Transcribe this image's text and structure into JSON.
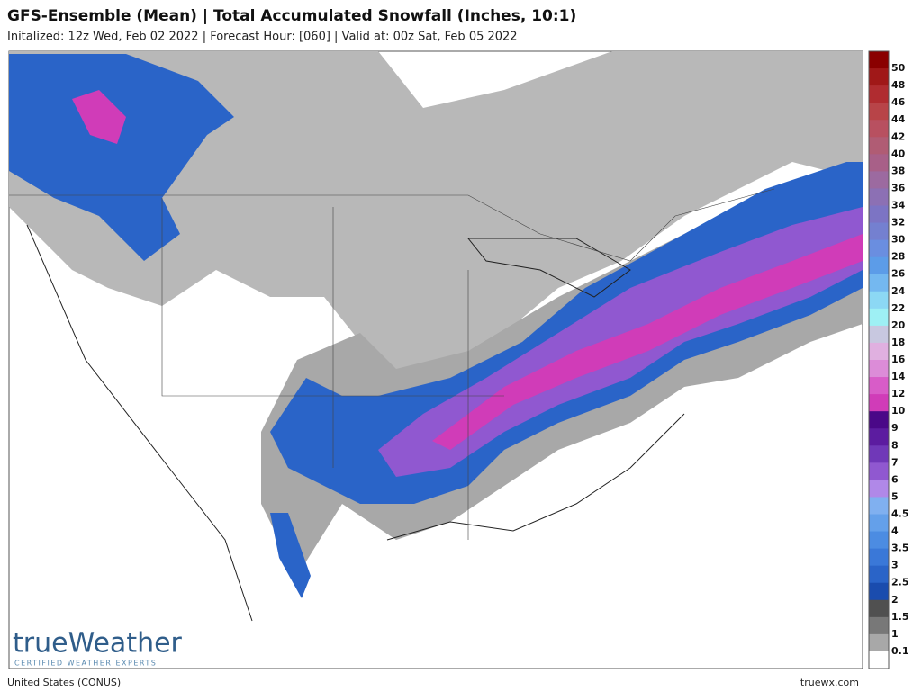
{
  "header": {
    "title": "GFS-Ensemble (Mean) | Total Accumulated Snowfall (Inches, 10:1)",
    "subtitle": "Initalized: 12z Wed, Feb 02 2022 | Forecast Hour: [060] | Valid at: 00z Sat, Feb 05 2022"
  },
  "legend": {
    "labels": [
      "50",
      "48",
      "46",
      "44",
      "42",
      "40",
      "38",
      "36",
      "34",
      "32",
      "30",
      "28",
      "26",
      "24",
      "22",
      "20",
      "18",
      "16",
      "14",
      "12",
      "10",
      "9",
      "8",
      "7",
      "6",
      "5",
      "4.5",
      "4",
      "3.5",
      "3",
      "2.5",
      "2",
      "1.5",
      "1",
      "0.1"
    ],
    "colors": [
      "#8a0000",
      "#a01818",
      "#b02c30",
      "#b84448",
      "#b85060",
      "#b05c74",
      "#a86088",
      "#9c6aa0",
      "#8c70b4",
      "#7c74c4",
      "#7480d0",
      "#6a8ee0",
      "#5c9ce8",
      "#74b8f0",
      "#8cd8f4",
      "#9ef0f4",
      "#c8c8e0",
      "#e0b0e0",
      "#dc8cd8",
      "#d85cc8",
      "#d03cb8",
      "#4a0888",
      "#5c1ca0",
      "#7038b8",
      "#9058d0",
      "#b088e8",
      "#80b0f0",
      "#64a0ea",
      "#4c8ce2",
      "#3a78d8",
      "#2a64c8",
      "#1a4cae",
      "#505050",
      "#787878",
      "#a8a8a8",
      "#ffffff"
    ]
  },
  "logo": {
    "name": "trueWeather",
    "tagline": "CERTIFIED WEATHER EXPERTS"
  },
  "footer": {
    "left": "United States (CONUS)",
    "right": "truewx.com"
  }
}
